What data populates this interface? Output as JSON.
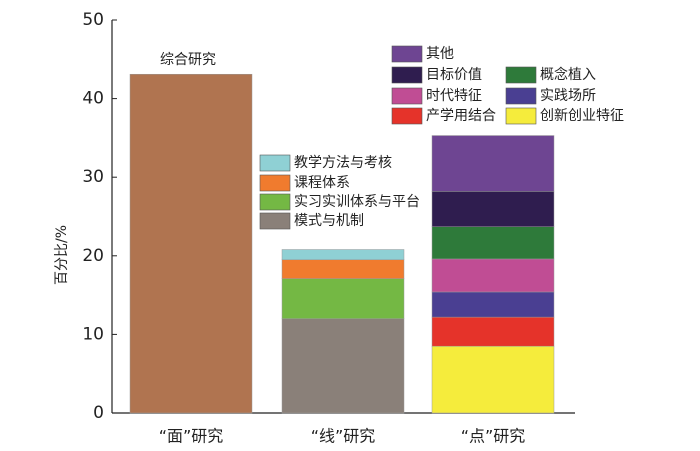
{
  "chart_data": {
    "type": "stacked-bar",
    "y_label": "百分比/%",
    "categories": [
      "“面”研究",
      "“线”研究",
      "“点”研究"
    ],
    "ylim": [
      0,
      50
    ],
    "yticks": [
      0,
      10,
      20,
      30,
      40,
      50
    ],
    "series": [
      {
        "name": "综合研究",
        "color": "#b07450",
        "values": [
          43.1,
          null,
          null
        ]
      },
      {
        "name": "模式与机制",
        "color": "#8a8079",
        "values": [
          null,
          12.0,
          null
        ]
      },
      {
        "name": "实习实训体系与平台",
        "color": "#74b844",
        "values": [
          null,
          5.1,
          null
        ]
      },
      {
        "name": "课程体系",
        "color": "#f07b2e",
        "values": [
          null,
          2.4,
          null
        ]
      },
      {
        "name": "教学方法与考核",
        "color": "#8fd0d4",
        "values": [
          null,
          1.3,
          null
        ]
      },
      {
        "name": "创新创业特征",
        "color": "#f5ec3c",
        "values": [
          null,
          null,
          8.5
        ]
      },
      {
        "name": "产学用结合",
        "color": "#e5332a",
        "values": [
          null,
          null,
          3.7
        ]
      },
      {
        "name": "实践场所",
        "color": "#4a3f92",
        "values": [
          null,
          null,
          3.2
        ]
      },
      {
        "name": "时代特征",
        "color": "#c04d94",
        "values": [
          null,
          null,
          4.2
        ]
      },
      {
        "name": "概念植入",
        "color": "#2e7a3a",
        "values": [
          null,
          null,
          4.1
        ]
      },
      {
        "name": "目标价值",
        "color": "#2f1d4f",
        "values": [
          null,
          null,
          4.5
        ]
      },
      {
        "name": "其他",
        "color": "#6e4592",
        "values": [
          null,
          null,
          7.1
        ]
      }
    ]
  }
}
